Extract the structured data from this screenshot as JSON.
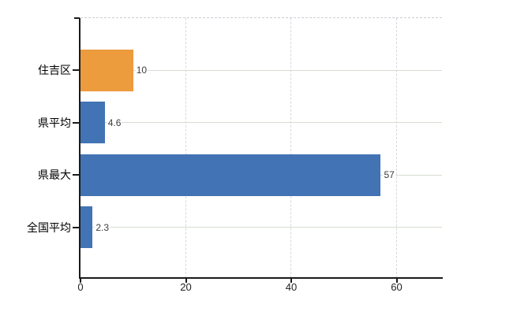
{
  "chart_data": {
    "type": "bar",
    "orientation": "horizontal",
    "title": "",
    "categories": [
      "住吉区",
      "県平均",
      "県最大",
      "全国平均"
    ],
    "values": [
      10,
      4.6,
      57,
      2.3
    ],
    "value_labels": [
      "10",
      "4.6",
      "57",
      "2.3"
    ],
    "series_colors": [
      "#EC9B3D",
      "#4273B4",
      "#4273B4",
      "#4273B4"
    ],
    "x_ticks": [
      0,
      20,
      40,
      60
    ],
    "x_tick_labels": [
      "0",
      "20",
      "40",
      "60"
    ],
    "xlim": [
      0,
      68.6
    ],
    "legend": null,
    "grid": {
      "horizontal": true,
      "vertical": true,
      "top_border_style": "dashed"
    },
    "colors": {
      "bar_orange": "#EC9B3D",
      "bar_blue": "#4273B4",
      "axis": "#1a1a1a",
      "gridline_horizontal": "#d6ddd2",
      "gridline_vertical": "#d9d6de",
      "top_border": "#cfccd4",
      "category_text": "#000000",
      "value_text": "#3c3c3c",
      "tick_text": "#222222",
      "background": "#ffffff"
    }
  }
}
